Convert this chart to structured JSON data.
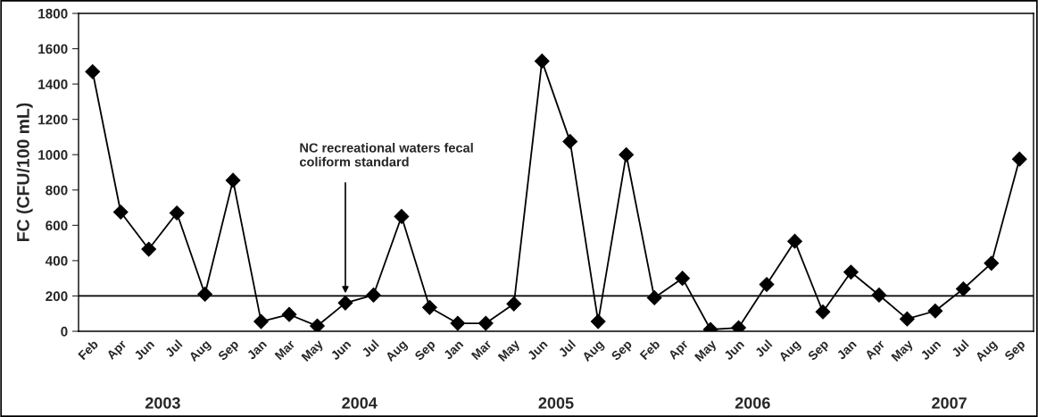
{
  "chart_data": {
    "type": "line",
    "ylabel": "FC (CFU/100 mL)",
    "categories": [
      "Feb",
      "Apr",
      "Jun",
      "Jul",
      "Aug",
      "Sep",
      "Jan",
      "Mar",
      "May",
      "Jun",
      "Jul",
      "Aug",
      "Sep",
      "Jan",
      "Mar",
      "May",
      "Jun",
      "Jul",
      "Aug",
      "Sep",
      "Feb",
      "Apr",
      "May",
      "Jun",
      "Jul",
      "Aug",
      "Sep",
      "Jan",
      "Apr",
      "May",
      "Jun",
      "Jul",
      "Aug",
      "Sep"
    ],
    "series": [
      {
        "color": "#000000",
        "values": [
          1470,
          675,
          465,
          670,
          210,
          855,
          55,
          95,
          30,
          160,
          205,
          650,
          135,
          45,
          45,
          155,
          1530,
          1075,
          55,
          1000,
          190,
          300,
          10,
          20,
          265,
          510,
          110,
          335,
          205,
          70,
          115,
          240,
          385,
          975
        ]
      }
    ],
    "ylim": [
      0,
      1800
    ],
    "yticks": [
      0,
      200,
      400,
      600,
      800,
      1000,
      1200,
      1400,
      1600,
      1800
    ],
    "ref_lines": [
      {
        "axis": "y",
        "value": 200,
        "label": "NC recreational waters fecal coliform standard",
        "color": "#000000",
        "line_style": "solid"
      }
    ],
    "annotations": [
      "2003",
      "2004",
      "2005",
      "2006",
      "2007"
    ],
    "marker": "diamond",
    "line_style": "solid",
    "grid": false
  }
}
